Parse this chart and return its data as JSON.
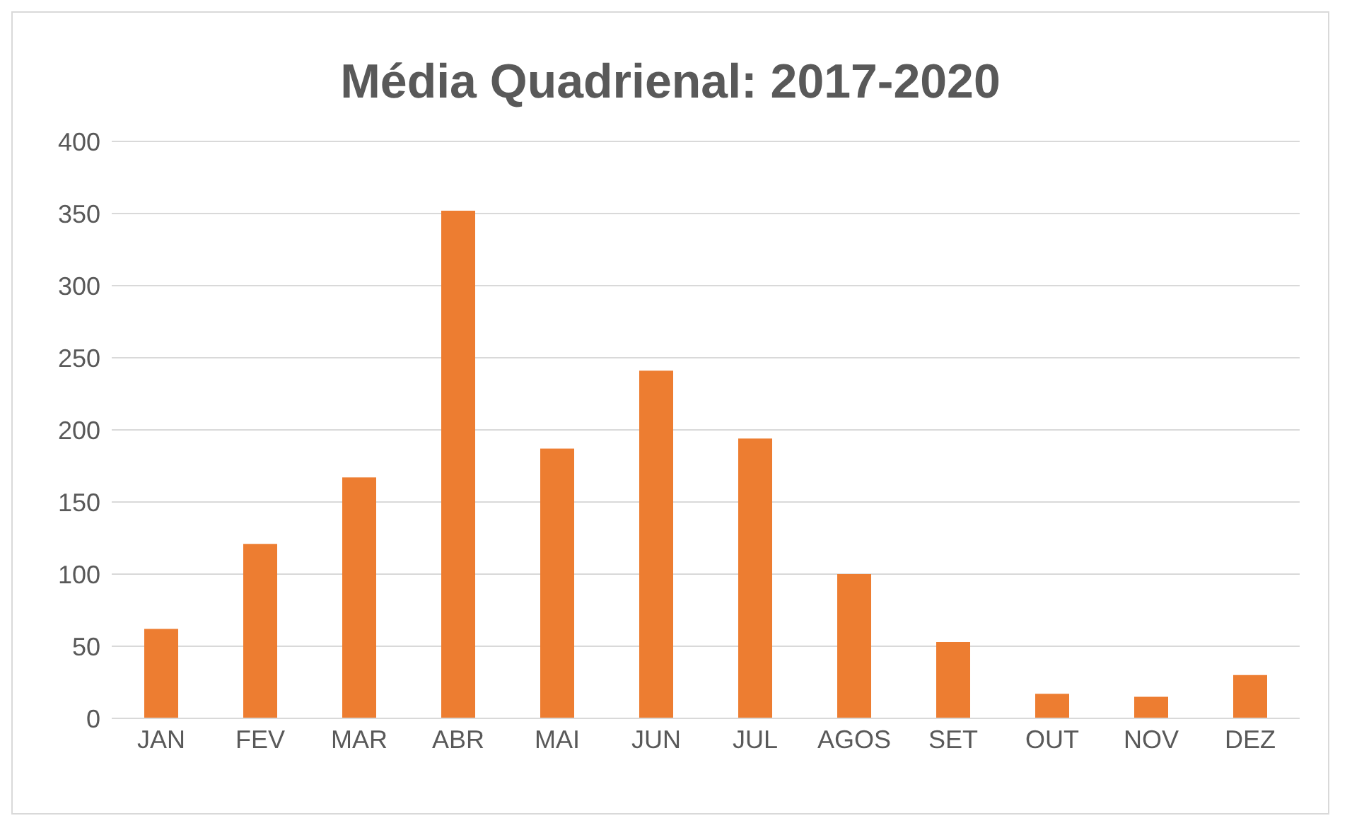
{
  "chart_data": {
    "type": "bar",
    "title": "Média Quadrienal: 2017-2020",
    "categories": [
      "JAN",
      "FEV",
      "MAR",
      "ABR",
      "MAI",
      "JUN",
      "JUL",
      "AGOS",
      "SET",
      "OUT",
      "NOV",
      "DEZ"
    ],
    "values": [
      62,
      121,
      167,
      352,
      187,
      241,
      194,
      100,
      53,
      17,
      15,
      30
    ],
    "color": "#ed7d31",
    "ylim": [
      0,
      400
    ],
    "yticks": [
      0,
      50,
      100,
      150,
      200,
      250,
      300,
      350,
      400
    ],
    "grid": "y"
  }
}
